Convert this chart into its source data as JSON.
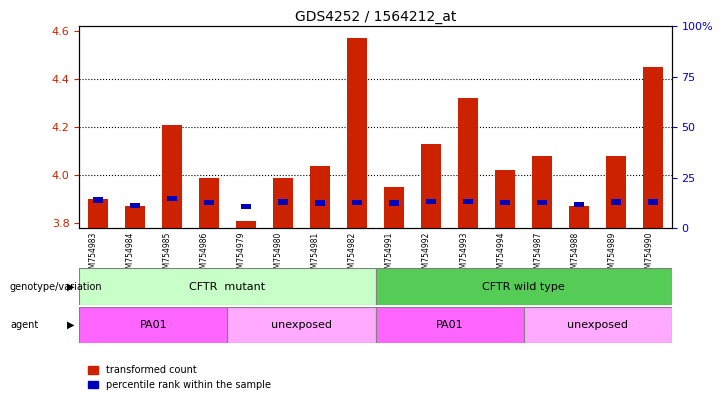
{
  "title": "GDS4252 / 1564212_at",
  "samples": [
    "GSM754983",
    "GSM754984",
    "GSM754985",
    "GSM754986",
    "GSM754979",
    "GSM754980",
    "GSM754981",
    "GSM754982",
    "GSM754991",
    "GSM754992",
    "GSM754993",
    "GSM754994",
    "GSM754987",
    "GSM754988",
    "GSM754989",
    "GSM754990"
  ],
  "red_values": [
    3.9,
    3.87,
    4.21,
    3.99,
    3.81,
    3.99,
    4.04,
    4.57,
    3.95,
    4.13,
    4.32,
    4.02,
    4.08,
    3.87,
    4.08,
    4.45
  ],
  "blue_positions": [
    3.886,
    3.862,
    3.893,
    3.876,
    3.858,
    3.877,
    3.873,
    3.876,
    3.873,
    3.879,
    3.879,
    3.876,
    3.876,
    3.868,
    3.877,
    3.877
  ],
  "ylim_left": [
    3.78,
    4.62
  ],
  "ylim_right": [
    0,
    100
  ],
  "yticks_left": [
    3.8,
    4.0,
    4.2,
    4.4,
    4.6
  ],
  "yticks_right": [
    0,
    25,
    50,
    75,
    100
  ],
  "bar_base": 3.78,
  "bar_width": 0.55,
  "genotype_mutant_label": "CFTR  mutant",
  "genotype_wildtype_label": "CFTR wild type",
  "agent_PA01_label": "PA01",
  "agent_unexposed_label": "unexposed",
  "genotype_mutant_color": "#c8ffc8",
  "genotype_wildtype_color": "#55cc55",
  "agent_bright_color": "#ff66ff",
  "agent_light_color": "#ffaaff",
  "bar_color_red": "#cc2200",
  "bar_color_blue": "#0000bb",
  "label_genotype": "genotype/variation",
  "label_agent": "agent",
  "legend_red": "transformed count",
  "legend_blue": "percentile rank within the sample",
  "right_axis_color": "#0000cc",
  "left_axis_color": "#cc2200",
  "gridline_y": [
    4.0,
    4.2,
    4.4
  ],
  "ticklabel_bg": "#cccccc"
}
